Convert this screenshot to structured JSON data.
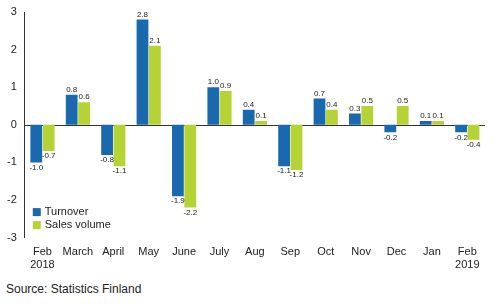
{
  "chart_data": {
    "type": "bar",
    "source": "Source: Statistics Finland",
    "categories": [
      [
        "Feb",
        "2018"
      ],
      "March",
      "April",
      "May",
      "June",
      "July",
      "Aug",
      "Sep",
      "Oct",
      "Nov",
      "Dec",
      "Jan",
      [
        "Feb",
        "2019"
      ]
    ],
    "series": [
      {
        "name": "Turnover",
        "color": "#1a68ad",
        "values": [
          -1.0,
          0.8,
          -0.8,
          2.8,
          -1.9,
          1.0,
          0.4,
          -1.1,
          0.7,
          0.3,
          -0.2,
          0.1,
          -0.2
        ],
        "value_labels": [
          "-1.0",
          "0.8",
          "-0.8",
          "2.8",
          "-1.9",
          "1.0",
          "0.4",
          "-1.1",
          "0.7",
          "0.3",
          "-0.2",
          "0.1",
          "-0.2"
        ]
      },
      {
        "name": "Sales volume",
        "color": "#b5d334",
        "values": [
          -0.7,
          0.6,
          -1.1,
          2.1,
          -2.2,
          0.9,
          0.1,
          -1.2,
          0.4,
          0.5,
          0.5,
          0.1,
          -0.4
        ],
        "value_labels": [
          "-0.7",
          "0.6",
          "-1.1",
          "2.1",
          "-2.2",
          "0.9",
          "0.1",
          "-1.2",
          "0.4",
          "0.5",
          "0.5",
          "0.1",
          "-0.4"
        ]
      }
    ],
    "ylim": [
      -3,
      3
    ],
    "yticks": [
      -3,
      -2,
      -1,
      0,
      1,
      2,
      3
    ],
    "grid": false,
    "legend": "lower left",
    "data_labels": true
  }
}
